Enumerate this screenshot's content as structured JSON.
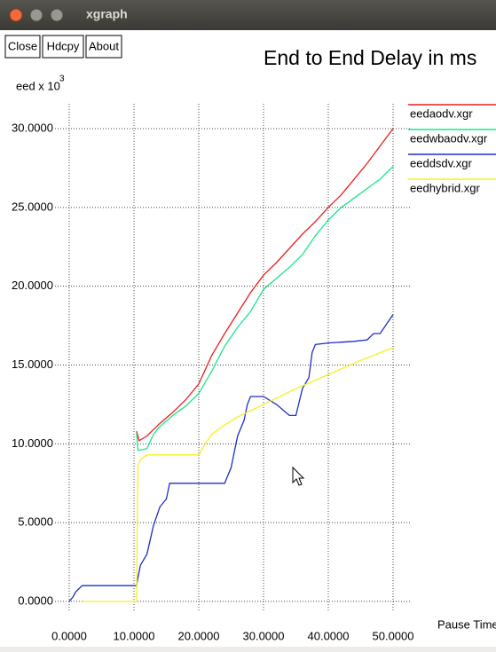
{
  "window_title": "xgraph",
  "buttons": [
    "Close",
    "Hdcpy",
    "About"
  ],
  "chart_data": {
    "type": "line",
    "title": "End to End Delay in ms",
    "y_label": "eed x 10",
    "y_label_exponent": "3",
    "x_label": "Pause Time",
    "xlim": [
      0,
      50
    ],
    "ylim": [
      0,
      30
    ],
    "xticks": [
      {
        "value": 0,
        "label": "0.0000"
      },
      {
        "value": 10,
        "label": "10.0000"
      },
      {
        "value": 20,
        "label": "20.0000"
      },
      {
        "value": 30,
        "label": "30.0000"
      },
      {
        "value": 40,
        "label": "40.0000"
      },
      {
        "value": 50,
        "label": "50.0000"
      }
    ],
    "yticks": [
      {
        "value": 0,
        "label": "0.0000"
      },
      {
        "value": 5,
        "label": "5.0000"
      },
      {
        "value": 10,
        "label": "10.0000"
      },
      {
        "value": 15,
        "label": "15.0000"
      },
      {
        "value": 20,
        "label": "20.0000"
      },
      {
        "value": 25,
        "label": "25.0000"
      },
      {
        "value": 30,
        "label": "30.0000"
      }
    ],
    "grid": true,
    "legend": "right",
    "series": [
      {
        "name": "eedaodv.xgr",
        "color": "#e8201c",
        "x": [
          10.4,
          10.8,
          12,
          14,
          16,
          18,
          20,
          22,
          24,
          26,
          28,
          30,
          32,
          34,
          36,
          38,
          40,
          42,
          44,
          46,
          48,
          50
        ],
        "values": [
          10.8,
          10.2,
          10.5,
          11.3,
          12.0,
          12.8,
          13.8,
          15.6,
          17.0,
          18.3,
          19.6,
          20.7,
          21.5,
          22.4,
          23.3,
          24.1,
          25.0,
          25.8,
          26.8,
          27.8,
          28.9,
          30.0
        ]
      },
      {
        "name": "eedwbaodv.xgr",
        "color": "#19e68c",
        "x": [
          10.4,
          10.6,
          11,
          12,
          13,
          14,
          16,
          18,
          20,
          22,
          24,
          26,
          28,
          30,
          32,
          34,
          36,
          38,
          40,
          42,
          44,
          46,
          48,
          49,
          50
        ],
        "values": [
          10.7,
          9.6,
          9.6,
          9.7,
          10.6,
          11.1,
          11.8,
          12.4,
          13.2,
          14.6,
          16.2,
          17.4,
          18.4,
          19.8,
          20.5,
          21.2,
          22.0,
          23.2,
          24.2,
          25.0,
          25.6,
          26.2,
          26.8,
          27.2,
          27.6
        ]
      },
      {
        "name": "eeddsdv.xgr",
        "color": "#1c2ec8",
        "x": [
          0,
          0.6,
          1,
          2,
          10.4,
          10.6,
          11,
          12,
          13,
          14,
          15,
          15.5,
          20,
          24,
          25,
          25.5,
          26,
          27,
          27.5,
          28,
          30,
          32,
          34,
          35,
          36,
          37,
          37.5,
          38,
          40,
          44,
          46,
          47,
          48,
          49,
          50
        ],
        "values": [
          0.0,
          0.3,
          0.6,
          1.0,
          1.0,
          1.5,
          2.3,
          3.0,
          4.8,
          6.0,
          6.5,
          7.5,
          7.5,
          7.5,
          8.5,
          9.5,
          10.5,
          11.5,
          12.5,
          13.0,
          13.0,
          12.5,
          11.8,
          11.8,
          13.5,
          14.2,
          15.8,
          16.3,
          16.4,
          16.5,
          16.6,
          17.0,
          17.0,
          17.6,
          18.2
        ]
      },
      {
        "name": "eedhybrid.xgr",
        "color": "#f5f020",
        "x": [
          2,
          10.4,
          10.6,
          11,
          12,
          20,
          21,
          22,
          24,
          26,
          28,
          30,
          35,
          40,
          45,
          50
        ],
        "values": [
          0.0,
          0.0,
          8.6,
          9.0,
          9.3,
          9.3,
          10.0,
          10.6,
          11.2,
          11.7,
          12.1,
          12.5,
          13.5,
          14.4,
          15.3,
          16.1
        ]
      }
    ]
  }
}
